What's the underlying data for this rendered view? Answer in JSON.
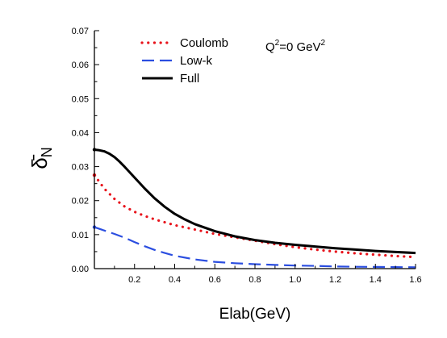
{
  "chart_data": {
    "type": "line",
    "title": "",
    "xlabel": "Elab(GeV)",
    "ylabel": "δ̄",
    "ylabel_subscript": "N",
    "xlim": [
      0.0,
      1.6
    ],
    "ylim": [
      0.0,
      0.07
    ],
    "x_ticks": [
      0.2,
      0.4,
      0.6,
      0.8,
      1.0,
      1.2,
      1.4,
      1.6
    ],
    "x_tick_labels": [
      "0.2",
      "0.4",
      "0.6",
      "0.8",
      "1.0",
      "1.2",
      "1.4",
      "1.6"
    ],
    "y_ticks": [
      0.0,
      0.01,
      0.02,
      0.03,
      0.04,
      0.05,
      0.06,
      0.07
    ],
    "y_tick_labels": [
      "0.00",
      "0.01",
      "0.02",
      "0.03",
      "0.04",
      "0.05",
      "0.06",
      "0.07"
    ],
    "grid": false,
    "legend_position": "top-left",
    "annotation": {
      "q_symbol": "Q",
      "q_exponent": "2",
      "value": "=0 GeV",
      "unit_exponent": "2"
    },
    "series": [
      {
        "name": "Coulomb",
        "color": "#e8141c",
        "style": "dotted",
        "x": [
          0.0,
          0.05,
          0.1,
          0.15,
          0.2,
          0.25,
          0.3,
          0.4,
          0.5,
          0.6,
          0.7,
          0.8,
          0.9,
          1.0,
          1.1,
          1.2,
          1.3,
          1.4,
          1.5,
          1.6
        ],
        "y": [
          0.0275,
          0.0235,
          0.0205,
          0.0183,
          0.0167,
          0.0155,
          0.0145,
          0.0128,
          0.0115,
          0.0102,
          0.0092,
          0.0082,
          0.0072,
          0.0063,
          0.0056,
          0.005,
          0.0045,
          0.0041,
          0.0037,
          0.0034
        ]
      },
      {
        "name": "Low-k",
        "color": "#2b4ee0",
        "style": "dashed",
        "x": [
          0.0,
          0.05,
          0.1,
          0.15,
          0.2,
          0.25,
          0.3,
          0.35,
          0.4,
          0.5,
          0.6,
          0.7,
          0.8,
          0.9,
          1.0,
          1.1,
          1.2,
          1.3,
          1.4,
          1.5,
          1.6
        ],
        "y": [
          0.0122,
          0.0112,
          0.0102,
          0.0091,
          0.0078,
          0.0066,
          0.0055,
          0.0046,
          0.0038,
          0.0027,
          0.002,
          0.0016,
          0.0013,
          0.0011,
          0.0009,
          0.0008,
          0.00065,
          0.00055,
          0.0005,
          0.00045,
          0.0004
        ]
      },
      {
        "name": "Full",
        "color": "#000000",
        "style": "solid",
        "x": [
          0.0,
          0.025,
          0.05,
          0.075,
          0.1,
          0.125,
          0.15,
          0.2,
          0.25,
          0.3,
          0.35,
          0.4,
          0.45,
          0.5,
          0.6,
          0.7,
          0.8,
          0.9,
          1.0,
          1.1,
          1.2,
          1.3,
          1.4,
          1.5,
          1.6
        ],
        "y": [
          0.035,
          0.0348,
          0.0345,
          0.0338,
          0.0328,
          0.0315,
          0.03,
          0.0268,
          0.0236,
          0.0207,
          0.0182,
          0.0161,
          0.0145,
          0.0131,
          0.011,
          0.0095,
          0.0084,
          0.0076,
          0.007,
          0.0065,
          0.006,
          0.0056,
          0.0052,
          0.0049,
          0.0046
        ]
      }
    ]
  }
}
